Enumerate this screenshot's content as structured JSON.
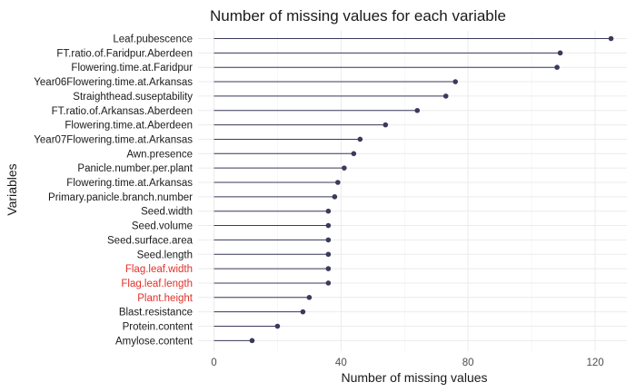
{
  "chart_data": {
    "type": "lollipop",
    "title": "Number of missing values for each variable",
    "xlabel": "Number of missing values",
    "ylabel": "Variables",
    "xlim": [
      -5,
      130
    ],
    "xticks": [
      0,
      40,
      80,
      120
    ],
    "grid": true,
    "highlight_color": "#e0312a",
    "point_color": "#3a3a5c",
    "categories": [
      "Leaf.pubescence",
      "FT.ratio.of.Faridpur.Aberdeen",
      "Flowering.time.at.Faridpur",
      "Year06Flowering.time.at.Arkansas",
      "Straighthead.suseptability",
      "FT.ratio.of.Arkansas.Aberdeen",
      "Flowering.time.at.Aberdeen",
      "Year07Flowering.time.at.Arkansas",
      "Awn.presence",
      "Panicle.number.per.plant",
      "Flowering.time.at.Arkansas",
      "Primary.panicle.branch.number",
      "Seed.width",
      "Seed.volume",
      "Seed.surface.area",
      "Seed.length",
      "Flag.leaf.width",
      "Flag.leaf.length",
      "Plant.height",
      "Blast.resistance",
      "Protein.content",
      "Amylose.content"
    ],
    "values": [
      125,
      109,
      108,
      76,
      73,
      64,
      54,
      46,
      44,
      41,
      39,
      38,
      36,
      36,
      36,
      36,
      36,
      36,
      30,
      28,
      20,
      12
    ],
    "highlighted": [
      "Flag.leaf.width",
      "Flag.leaf.length",
      "Plant.height"
    ]
  }
}
